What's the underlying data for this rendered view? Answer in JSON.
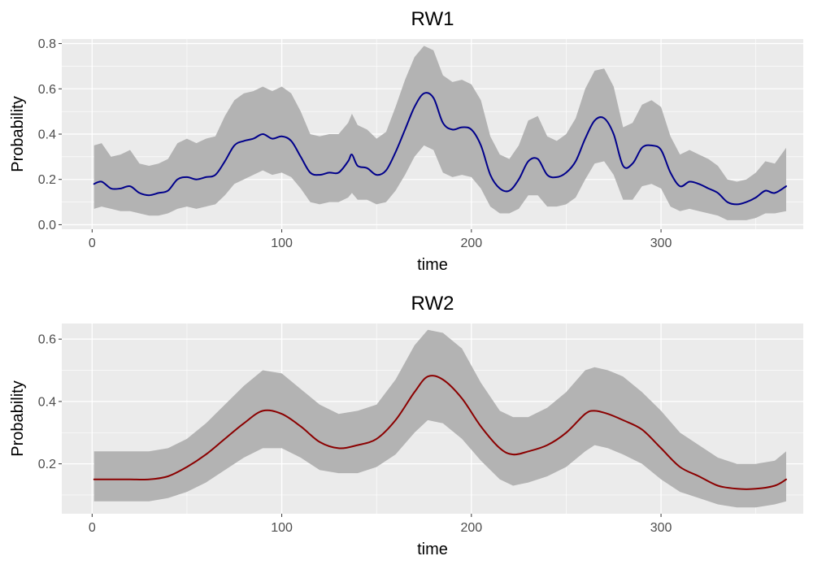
{
  "colors": {
    "panel_background": "#ebebeb",
    "grid_major": "#ffffff",
    "ribbon": "#b3b3b3",
    "tick_text": "#4d4d4d"
  },
  "chart_data": [
    {
      "type": "line",
      "title": "RW1",
      "xlabel": "time",
      "ylabel": "Probability",
      "xlim": [
        -16,
        375
      ],
      "ylim": [
        -0.02,
        0.82
      ],
      "x_ticks": [
        0,
        100,
        200,
        300
      ],
      "y_ticks": [
        0.0,
        0.2,
        0.4,
        0.6,
        0.8
      ],
      "x_tick_labels": [
        "0",
        "100",
        "200",
        "300"
      ],
      "y_tick_labels": [
        "0.0",
        "0.2",
        "0.4",
        "0.6",
        "0.8"
      ],
      "grid": true,
      "series": [
        {
          "color": "#00008b",
          "x": [
            1,
            5,
            10,
            15,
            20,
            25,
            30,
            35,
            40,
            45,
            50,
            55,
            60,
            65,
            70,
            75,
            80,
            85,
            90,
            95,
            100,
            105,
            110,
            115,
            120,
            125,
            130,
            135,
            137,
            140,
            145,
            150,
            155,
            160,
            165,
            170,
            175,
            180,
            185,
            190,
            195,
            200,
            205,
            210,
            215,
            220,
            225,
            230,
            235,
            240,
            245,
            250,
            255,
            260,
            265,
            270,
            275,
            280,
            285,
            290,
            295,
            300,
            305,
            310,
            315,
            320,
            325,
            330,
            335,
            340,
            345,
            350,
            355,
            360,
            366
          ],
          "y": [
            0.18,
            0.19,
            0.16,
            0.16,
            0.17,
            0.14,
            0.13,
            0.14,
            0.15,
            0.2,
            0.21,
            0.2,
            0.21,
            0.22,
            0.28,
            0.35,
            0.37,
            0.38,
            0.4,
            0.38,
            0.39,
            0.37,
            0.3,
            0.23,
            0.22,
            0.23,
            0.23,
            0.28,
            0.31,
            0.26,
            0.25,
            0.22,
            0.24,
            0.32,
            0.42,
            0.52,
            0.58,
            0.56,
            0.45,
            0.42,
            0.43,
            0.42,
            0.35,
            0.22,
            0.16,
            0.15,
            0.2,
            0.28,
            0.29,
            0.22,
            0.21,
            0.23,
            0.28,
            0.38,
            0.46,
            0.47,
            0.4,
            0.26,
            0.27,
            0.34,
            0.35,
            0.33,
            0.23,
            0.17,
            0.19,
            0.18,
            0.16,
            0.14,
            0.1,
            0.09,
            0.1,
            0.12,
            0.15,
            0.14,
            0.17
          ],
          "lower": [
            0.07,
            0.08,
            0.07,
            0.06,
            0.06,
            0.05,
            0.04,
            0.04,
            0.05,
            0.07,
            0.08,
            0.07,
            0.08,
            0.09,
            0.13,
            0.18,
            0.2,
            0.22,
            0.24,
            0.22,
            0.23,
            0.21,
            0.16,
            0.1,
            0.09,
            0.1,
            0.1,
            0.12,
            0.14,
            0.11,
            0.11,
            0.09,
            0.1,
            0.15,
            0.22,
            0.3,
            0.35,
            0.33,
            0.23,
            0.21,
            0.22,
            0.21,
            0.16,
            0.08,
            0.05,
            0.05,
            0.07,
            0.13,
            0.13,
            0.08,
            0.08,
            0.09,
            0.12,
            0.2,
            0.27,
            0.28,
            0.22,
            0.11,
            0.11,
            0.17,
            0.18,
            0.16,
            0.08,
            0.06,
            0.07,
            0.06,
            0.05,
            0.04,
            0.02,
            0.02,
            0.02,
            0.03,
            0.05,
            0.05,
            0.06
          ],
          "upper": [
            0.35,
            0.36,
            0.3,
            0.31,
            0.33,
            0.27,
            0.26,
            0.27,
            0.29,
            0.36,
            0.38,
            0.36,
            0.38,
            0.39,
            0.48,
            0.55,
            0.58,
            0.59,
            0.61,
            0.59,
            0.61,
            0.58,
            0.5,
            0.4,
            0.39,
            0.4,
            0.4,
            0.45,
            0.49,
            0.44,
            0.42,
            0.38,
            0.41,
            0.52,
            0.64,
            0.74,
            0.79,
            0.77,
            0.66,
            0.63,
            0.64,
            0.62,
            0.55,
            0.39,
            0.31,
            0.29,
            0.35,
            0.46,
            0.48,
            0.39,
            0.37,
            0.4,
            0.47,
            0.6,
            0.68,
            0.69,
            0.61,
            0.43,
            0.45,
            0.53,
            0.55,
            0.52,
            0.39,
            0.31,
            0.33,
            0.31,
            0.29,
            0.26,
            0.2,
            0.19,
            0.2,
            0.23,
            0.28,
            0.27,
            0.34
          ]
        }
      ]
    },
    {
      "type": "line",
      "title": "RW2",
      "xlabel": "time",
      "ylabel": "Probability",
      "xlim": [
        -16,
        375
      ],
      "ylim": [
        0.04,
        0.65
      ],
      "x_ticks": [
        0,
        100,
        200,
        300
      ],
      "y_ticks": [
        0.2,
        0.4,
        0.6
      ],
      "x_tick_labels": [
        "0",
        "100",
        "200",
        "300"
      ],
      "y_tick_labels": [
        "0.2",
        "0.4",
        "0.6"
      ],
      "grid": true,
      "series": [
        {
          "color": "#8b0000",
          "x": [
            1,
            10,
            20,
            30,
            40,
            50,
            60,
            70,
            80,
            90,
            100,
            110,
            120,
            130,
            140,
            150,
            160,
            170,
            177,
            185,
            195,
            205,
            215,
            222,
            230,
            240,
            250,
            260,
            265,
            272,
            280,
            290,
            300,
            310,
            320,
            330,
            340,
            350,
            360,
            366
          ],
          "y": [
            0.15,
            0.15,
            0.15,
            0.15,
            0.16,
            0.19,
            0.23,
            0.28,
            0.33,
            0.37,
            0.36,
            0.32,
            0.27,
            0.25,
            0.26,
            0.28,
            0.34,
            0.43,
            0.48,
            0.47,
            0.41,
            0.32,
            0.25,
            0.23,
            0.24,
            0.26,
            0.3,
            0.36,
            0.37,
            0.36,
            0.34,
            0.31,
            0.25,
            0.19,
            0.16,
            0.13,
            0.12,
            0.12,
            0.13,
            0.15
          ],
          "lower": [
            0.08,
            0.08,
            0.08,
            0.08,
            0.09,
            0.11,
            0.14,
            0.18,
            0.22,
            0.25,
            0.25,
            0.22,
            0.18,
            0.17,
            0.17,
            0.19,
            0.23,
            0.3,
            0.34,
            0.33,
            0.28,
            0.21,
            0.15,
            0.13,
            0.14,
            0.16,
            0.19,
            0.24,
            0.26,
            0.25,
            0.23,
            0.2,
            0.15,
            0.11,
            0.09,
            0.07,
            0.06,
            0.06,
            0.07,
            0.08
          ],
          "upper": [
            0.24,
            0.24,
            0.24,
            0.24,
            0.25,
            0.28,
            0.33,
            0.39,
            0.45,
            0.5,
            0.49,
            0.44,
            0.39,
            0.36,
            0.37,
            0.39,
            0.47,
            0.58,
            0.63,
            0.62,
            0.57,
            0.46,
            0.37,
            0.35,
            0.35,
            0.38,
            0.43,
            0.5,
            0.51,
            0.5,
            0.48,
            0.43,
            0.37,
            0.3,
            0.26,
            0.22,
            0.2,
            0.2,
            0.21,
            0.24
          ]
        }
      ]
    }
  ]
}
